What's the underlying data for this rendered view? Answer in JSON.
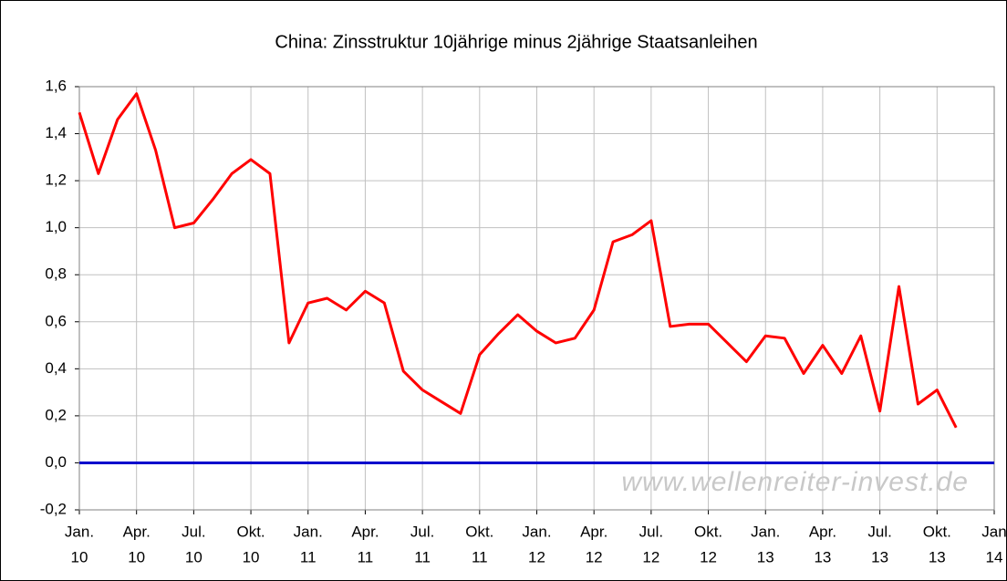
{
  "chart_data": {
    "type": "line",
    "title": "China: Zinsstruktur 10jährige minus 2jährige Staatsanleihen",
    "watermark": "www.wellenreiter-invest.de",
    "x": [
      "2010-01",
      "2010-02",
      "2010-03",
      "2010-04",
      "2010-05",
      "2010-06",
      "2010-07",
      "2010-08",
      "2010-09",
      "2010-10",
      "2010-11",
      "2010-12",
      "2011-01",
      "2011-02",
      "2011-03",
      "2011-04",
      "2011-05",
      "2011-06",
      "2011-07",
      "2011-08",
      "2011-09",
      "2011-10",
      "2011-11",
      "2011-12",
      "2012-01",
      "2012-02",
      "2012-03",
      "2012-04",
      "2012-05",
      "2012-06",
      "2012-07",
      "2012-08",
      "2012-09",
      "2012-10",
      "2012-11",
      "2012-12",
      "2013-01",
      "2013-02",
      "2013-03",
      "2013-04",
      "2013-05",
      "2013-06",
      "2013-07",
      "2013-08",
      "2013-09",
      "2013-10",
      "2013-11"
    ],
    "series": [
      {
        "color": "#ff0000",
        "values": [
          1.49,
          1.23,
          1.46,
          1.57,
          1.33,
          1.0,
          1.02,
          1.12,
          1.23,
          1.29,
          1.23,
          0.51,
          0.68,
          0.7,
          0.65,
          0.73,
          0.68,
          0.39,
          0.31,
          0.26,
          0.21,
          0.46,
          0.55,
          0.63,
          0.56,
          0.51,
          0.53,
          0.65,
          0.94,
          0.97,
          1.03,
          0.58,
          0.59,
          0.59,
          0.51,
          0.43,
          0.54,
          0.53,
          0.38,
          0.5,
          0.38,
          0.54,
          0.22,
          0.75,
          0.25,
          0.31,
          0.15
        ]
      }
    ],
    "hline": {
      "value": 0,
      "color": "#0000cc"
    },
    "xlim": [
      "2010-01",
      "2014-01"
    ],
    "xticks": [
      {
        "value": "2010-01",
        "label": [
          "Jan.",
          "10"
        ]
      },
      {
        "value": "2010-04",
        "label": [
          "Apr.",
          "10"
        ]
      },
      {
        "value": "2010-07",
        "label": [
          "Jul.",
          "10"
        ]
      },
      {
        "value": "2010-10",
        "label": [
          "Okt.",
          "10"
        ]
      },
      {
        "value": "2011-01",
        "label": [
          "Jan.",
          "11"
        ]
      },
      {
        "value": "2011-04",
        "label": [
          "Apr.",
          "11"
        ]
      },
      {
        "value": "2011-07",
        "label": [
          "Jul.",
          "11"
        ]
      },
      {
        "value": "2011-10",
        "label": [
          "Okt.",
          "11"
        ]
      },
      {
        "value": "2012-01",
        "label": [
          "Jan.",
          "12"
        ]
      },
      {
        "value": "2012-04",
        "label": [
          "Apr.",
          "12"
        ]
      },
      {
        "value": "2012-07",
        "label": [
          "Jul.",
          "12"
        ]
      },
      {
        "value": "2012-10",
        "label": [
          "Okt.",
          "12"
        ]
      },
      {
        "value": "2013-01",
        "label": [
          "Jan.",
          "13"
        ]
      },
      {
        "value": "2013-04",
        "label": [
          "Apr.",
          "13"
        ]
      },
      {
        "value": "2013-07",
        "label": [
          "Jul.",
          "13"
        ]
      },
      {
        "value": "2013-10",
        "label": [
          "Okt.",
          "13"
        ]
      },
      {
        "value": "2014-01",
        "label": [
          "Jan",
          "14"
        ]
      }
    ],
    "ylim": [
      -0.2,
      1.6
    ],
    "yticks": [
      {
        "value": -0.2,
        "label": "-0,2"
      },
      {
        "value": 0,
        "label": "0,0"
      },
      {
        "value": 0.2,
        "label": "0,2"
      },
      {
        "value": 0.4,
        "label": "0,4"
      },
      {
        "value": 0.6,
        "label": "0,6"
      },
      {
        "value": 0.8,
        "label": "0,8"
      },
      {
        "value": 1.0,
        "label": "1,0"
      },
      {
        "value": 1.2,
        "label": "1,2"
      },
      {
        "value": 1.4,
        "label": "1,4"
      },
      {
        "value": 1.6,
        "label": "1,6"
      }
    ],
    "grid": true
  }
}
